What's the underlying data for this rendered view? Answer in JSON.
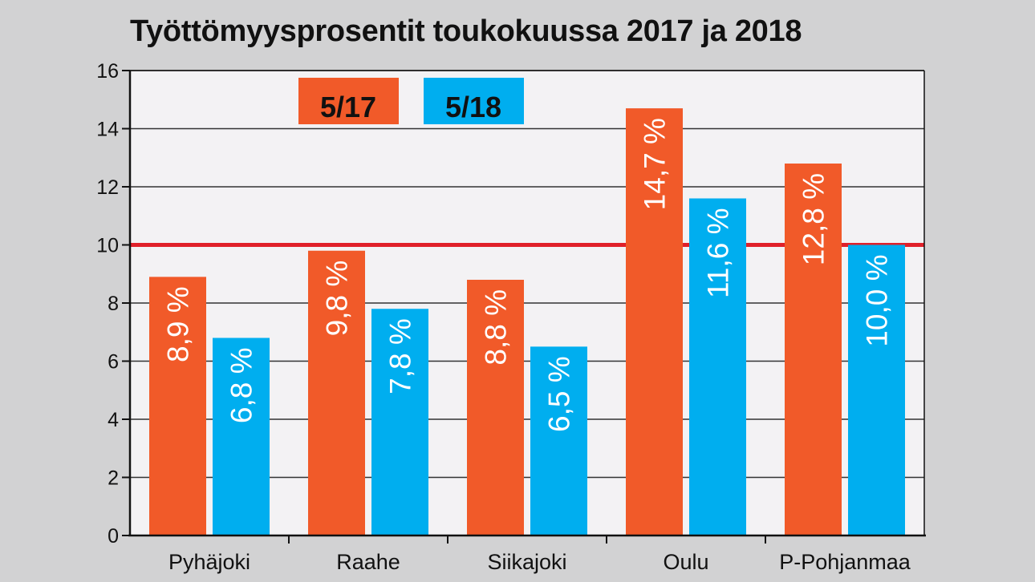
{
  "chart_data": {
    "type": "bar",
    "title": "Työttömyysprosentit toukokuussa 2017 ja 2018",
    "categories": [
      "Pyhäjoki",
      "Raahe",
      "Siikajoki",
      "Oulu",
      "P-Pohjanmaa"
    ],
    "series": [
      {
        "name": "5/17",
        "color": "#f15a29",
        "values": [
          8.9,
          9.8,
          8.8,
          14.7,
          12.8
        ],
        "labels": [
          "8,9 %",
          "9,8 %",
          "8,8 %",
          "14,7 %",
          "12,8 %"
        ]
      },
      {
        "name": "5/18",
        "color": "#00aeef",
        "values": [
          6.8,
          7.8,
          6.5,
          11.6,
          10.0
        ],
        "labels": [
          "6,8 %",
          "7,8 %",
          "6,5 %",
          "11,6 %",
          "10,0 %"
        ]
      }
    ],
    "ylim": [
      0,
      16
    ],
    "yticks": [
      "0",
      "2",
      "4",
      "6",
      "8",
      "10",
      "12",
      "14",
      "16"
    ],
    "reference_line": {
      "value": 10,
      "color": "#e0202a"
    },
    "grid": true,
    "legend_position": "top-left",
    "xlabel": "",
    "ylabel": ""
  },
  "colors": {
    "background": "#d2d2d3",
    "plot_background": "#f3f2f4",
    "gridline": "#333333"
  }
}
